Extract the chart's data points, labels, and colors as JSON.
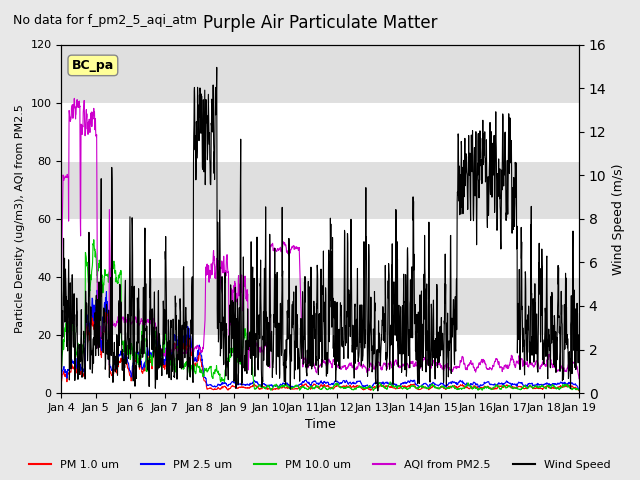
{
  "title": "Purple Air Particulate Matter",
  "subtitle": "No data for f_pm2_5_aqi_atm",
  "xlabel": "Time",
  "ylabel_left": "Particle Density (ug/m3), AQI from PM2.5",
  "ylabel_right": "Wind Speed (m/s)",
  "ylim_left": [
    0,
    120
  ],
  "ylim_right": [
    0,
    16
  ],
  "yticks_left": [
    0,
    20,
    40,
    60,
    80,
    100,
    120
  ],
  "yticks_right": [
    0,
    2,
    4,
    6,
    8,
    10,
    12,
    14,
    16
  ],
  "xtick_labels": [
    "Jan 4",
    "Jan 5",
    "Jan 6",
    "Jan 7",
    "Jan 8",
    "Jan 9",
    "Jan 10",
    "Jan 11",
    "Jan 12",
    "Jan 13",
    "Jan 14",
    "Jan 15",
    "Jan 16",
    "Jan 17",
    "Jan 18",
    "Jan 19"
  ],
  "annotation_box": "BC_pa",
  "annotation_box_color": "#ffff99",
  "annotation_box_border": "#888888",
  "background_color": "#e8e8e8",
  "plot_bg_color": "#ffffff",
  "grid_color": "#ffffff",
  "colors": {
    "pm1": "#ff0000",
    "pm25": "#0000ff",
    "pm10": "#00cc00",
    "aqi": "#cc00cc",
    "wind": "#000000"
  },
  "legend_labels": [
    "PM 1.0 um",
    "PM 2.5 um",
    "PM 10.0 um",
    "AQI from PM2.5",
    "Wind Speed"
  ]
}
